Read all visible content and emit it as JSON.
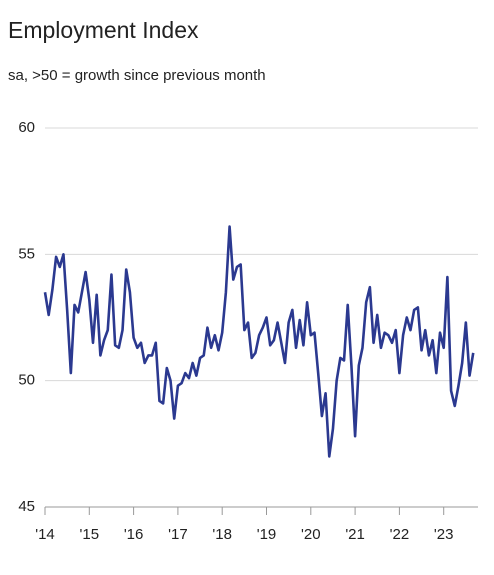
{
  "chart_data": {
    "type": "line",
    "title": "Employment Index",
    "subtitle": "sa, >50 = growth since previous month",
    "categories": [
      "'14",
      null,
      null,
      null,
      null,
      null,
      null,
      null,
      null,
      null,
      null,
      null,
      "'15",
      null,
      null,
      null,
      null,
      null,
      null,
      null,
      null,
      null,
      null,
      null,
      "'16",
      null,
      null,
      null,
      null,
      null,
      null,
      null,
      null,
      null,
      null,
      null,
      "'17",
      null,
      null,
      null,
      null,
      null,
      null,
      null,
      null,
      null,
      null,
      null,
      "'18",
      null,
      null,
      null,
      null,
      null,
      null,
      null,
      null,
      null,
      null,
      null,
      "'19",
      null,
      null,
      null,
      null,
      null,
      null,
      null,
      null,
      null,
      null,
      null,
      "'20",
      null,
      null,
      null,
      null,
      null,
      null,
      null,
      null,
      null,
      null,
      null,
      "'21",
      null,
      null,
      null,
      null,
      null,
      null,
      null,
      null,
      null,
      null,
      null,
      "'22",
      null,
      null,
      null,
      null,
      null,
      null,
      null,
      null,
      null,
      null,
      null,
      "'23",
      null,
      null,
      null,
      null,
      null,
      null,
      null,
      null
    ],
    "values": [
      53.5,
      52.6,
      53.6,
      54.9,
      54.5,
      55.0,
      52.8,
      50.3,
      53.0,
      52.7,
      53.5,
      54.3,
      53.2,
      51.5,
      53.4,
      51.0,
      51.6,
      52.0,
      54.2,
      51.4,
      51.3,
      52.0,
      54.4,
      53.5,
      51.7,
      51.3,
      51.5,
      50.7,
      51.0,
      51.0,
      51.5,
      49.2,
      49.1,
      50.5,
      50.0,
      48.5,
      49.8,
      49.9,
      50.3,
      50.1,
      50.7,
      50.2,
      50.9,
      51.0,
      52.1,
      51.3,
      51.8,
      51.2,
      51.9,
      53.5,
      56.1,
      54.0,
      54.5,
      54.6,
      52.0,
      52.3,
      50.9,
      51.1,
      51.8,
      52.1,
      52.5,
      51.4,
      51.6,
      52.3,
      51.5,
      50.7,
      52.3,
      52.8,
      51.3,
      52.4,
      51.4,
      53.1,
      51.8,
      51.9,
      50.3,
      48.6,
      49.5,
      47.0,
      48.1,
      50.0,
      50.9,
      50.8,
      53.0,
      50.6,
      47.8,
      50.6,
      51.3,
      53.1,
      53.7,
      51.5,
      52.6,
      51.3,
      51.9,
      51.8,
      51.5,
      52.0,
      50.3,
      51.8,
      52.5,
      52.0,
      52.8,
      52.9,
      51.2,
      52.0,
      51.0,
      51.6,
      50.3,
      51.9,
      51.3,
      54.1,
      49.6,
      49.0,
      49.8,
      50.7,
      52.3,
      50.2,
      51.1
    ],
    "color": "#2b3990",
    "ylim": [
      45,
      60
    ],
    "yticks": [
      45,
      50,
      55,
      60
    ],
    "grid": true
  }
}
